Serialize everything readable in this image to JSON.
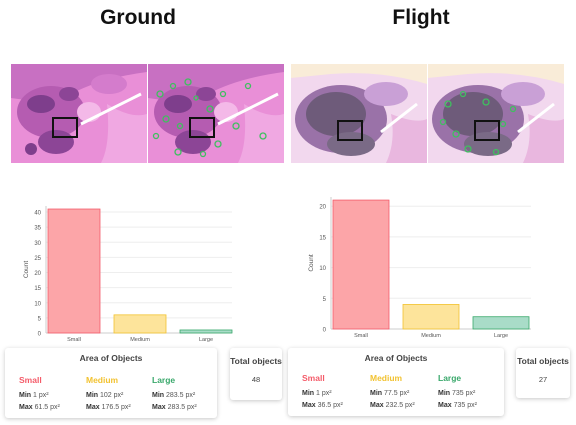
{
  "panels": [
    {
      "title": "Ground",
      "area": {
        "title": "Area of Objects",
        "small": {
          "label": "Small",
          "min": "1 px²",
          "max": "61.5 px²"
        },
        "medium": {
          "label": "Medium",
          "min": "102 px²",
          "max": "176.5 px²"
        },
        "large": {
          "label": "Large",
          "min": "283.5 px²",
          "max": "283.5 px²"
        }
      },
      "total": {
        "label": "Total objects",
        "value": "48"
      }
    },
    {
      "title": "Flight",
      "area": {
        "title": "Area of Objects",
        "small": {
          "label": "Small",
          "min": "1 px²",
          "max": "36.5 px²"
        },
        "medium": {
          "label": "Medium",
          "min": "77.5 px²",
          "max": "232.5 px²"
        },
        "large": {
          "label": "Large",
          "min": "735 px²",
          "max": "735 px²"
        }
      },
      "total": {
        "label": "Total objects",
        "value": "27"
      }
    }
  ],
  "labels": {
    "min": "Min",
    "max": "Max"
  },
  "colors": {
    "small": "#f45b69",
    "small_fill": "#fca5a8",
    "medium": "#f2c230",
    "medium_fill": "#fde49b",
    "large": "#39a86b",
    "large_fill": "#a9dcc8"
  },
  "chart_data": [
    {
      "type": "bar",
      "categories": [
        "Small",
        "Medium",
        "Large"
      ],
      "values": [
        41,
        6,
        1
      ],
      "ylabel": "Count",
      "ylim": [
        0,
        42
      ],
      "yticks": [
        0,
        5,
        10,
        15,
        20,
        25,
        30,
        35,
        40
      ]
    },
    {
      "type": "bar",
      "categories": [
        "Small",
        "Medium",
        "Large"
      ],
      "values": [
        21,
        4,
        2
      ],
      "ylabel": "Count",
      "ylim": [
        0,
        21.5
      ],
      "yticks": [
        0,
        5,
        10,
        15,
        20
      ]
    }
  ]
}
